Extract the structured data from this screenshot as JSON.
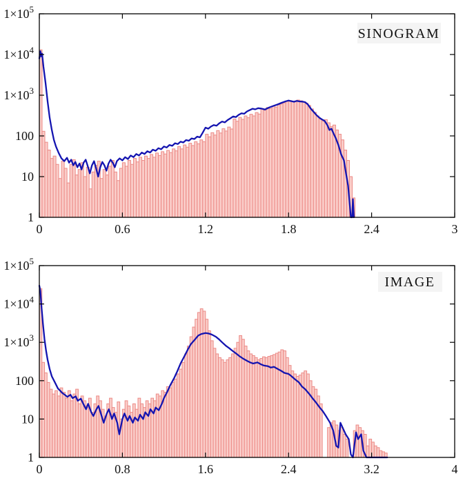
{
  "colors": {
    "bar_fill": "#FACDC9",
    "bar_edge": "#EC8A86",
    "line": "#1414B0",
    "axis": "#000000",
    "label_bg": "#F4F4F4",
    "text": "#111111",
    "background": "#FFFFFF"
  },
  "chart_data": [
    {
      "type": "bar",
      "title": "SINOGRAM",
      "xlabel": "",
      "ylabel": "",
      "xlim": [
        0,
        3
      ],
      "ylim": [
        1,
        100000
      ],
      "y_scale": "log",
      "grid": false,
      "legend_position": "none",
      "x_ticks": [
        0,
        0.6,
        1.2,
        1.8,
        2.4,
        3
      ],
      "x_tick_labels": [
        "0",
        "0.6",
        "1.2",
        "1.8",
        "2.4",
        "3"
      ],
      "y_ticks": [
        {
          "v": 100000,
          "base": "1×10",
          "exp": "5"
        },
        {
          "v": 10000,
          "base": "1×10",
          "exp": "4"
        },
        {
          "v": 1000,
          "base": "1×10",
          "exp": "3"
        },
        {
          "v": 100,
          "base": "100",
          "exp": ""
        },
        {
          "v": 10,
          "base": "10",
          "exp": ""
        },
        {
          "v": 1,
          "base": "1",
          "exp": ""
        }
      ],
      "bin_width": 0.02,
      "bars": [
        13000,
        130,
        70,
        45,
        28,
        32,
        20,
        9,
        24,
        16,
        7,
        20,
        26,
        11,
        15,
        22,
        10,
        17,
        5,
        13,
        19,
        24,
        9,
        15,
        11,
        18,
        25,
        13,
        8,
        16,
        22,
        18,
        25,
        20,
        28,
        23,
        30,
        25,
        32,
        28,
        35,
        30,
        38,
        33,
        41,
        36,
        44,
        39,
        48,
        43,
        55,
        48,
        60,
        53,
        66,
        58,
        72,
        64,
        80,
        72,
        110,
        95,
        120,
        105,
        135,
        118,
        150,
        132,
        165,
        148,
        260,
        230,
        285,
        255,
        310,
        280,
        340,
        310,
        375,
        345,
        470,
        430,
        500,
        470,
        540,
        510,
        580,
        610,
        650,
        700,
        740,
        700,
        720,
        760,
        730,
        690,
        640,
        560,
        460,
        380,
        310,
        260,
        230,
        250,
        210,
        170,
        185,
        140,
        110,
        80,
        45,
        25,
        10,
        3
      ],
      "line_x": [
        0,
        0.008,
        0.013,
        0.02,
        0.03,
        0.045,
        0.06,
        0.075,
        0.09,
        0.105,
        0.12,
        0.14,
        0.16,
        0.18,
        0.2,
        0.215,
        0.23,
        0.245,
        0.26,
        0.275,
        0.29,
        0.305,
        0.32,
        0.335,
        0.35,
        0.365,
        0.38,
        0.395,
        0.41,
        0.425,
        0.44,
        0.455,
        0.47,
        0.485,
        0.5,
        0.515,
        0.53,
        0.545,
        0.56,
        0.58,
        0.6,
        0.62,
        0.64,
        0.66,
        0.68,
        0.7,
        0.72,
        0.74,
        0.76,
        0.78,
        0.8,
        0.82,
        0.84,
        0.86,
        0.88,
        0.9,
        0.92,
        0.94,
        0.96,
        0.98,
        1.0,
        1.02,
        1.04,
        1.06,
        1.08,
        1.1,
        1.12,
        1.14,
        1.16,
        1.18,
        1.2,
        1.22,
        1.24,
        1.26,
        1.28,
        1.3,
        1.32,
        1.34,
        1.36,
        1.38,
        1.4,
        1.42,
        1.44,
        1.46,
        1.48,
        1.5,
        1.52,
        1.54,
        1.56,
        1.58,
        1.6,
        1.63,
        1.66,
        1.69,
        1.72,
        1.75,
        1.78,
        1.8,
        1.82,
        1.84,
        1.86,
        1.88,
        1.9,
        1.92,
        1.94,
        1.96,
        1.98,
        2.0,
        2.02,
        2.04,
        2.06,
        2.08,
        2.095,
        2.11,
        2.125,
        2.14,
        2.16,
        2.18,
        2.2,
        2.215,
        2.23,
        2.24,
        2.25,
        2.26,
        2.265,
        2.272
      ],
      "line_y": [
        8000,
        12000,
        9000,
        10500,
        5000,
        2000,
        700,
        280,
        140,
        80,
        55,
        38,
        28,
        24,
        29,
        22,
        26,
        19,
        23,
        17,
        21,
        15,
        22,
        26,
        18,
        12,
        19,
        24,
        16,
        10,
        17,
        23,
        19,
        14,
        21,
        26,
        22,
        17,
        24,
        28,
        25,
        30,
        27,
        33,
        30,
        36,
        33,
        39,
        36,
        42,
        39,
        46,
        43,
        50,
        47,
        55,
        52,
        60,
        57,
        66,
        63,
        72,
        69,
        79,
        76,
        87,
        84,
        96,
        92,
        120,
        160,
        150,
        170,
        185,
        178,
        205,
        225,
        215,
        245,
        270,
        300,
        290,
        330,
        360,
        350,
        400,
        430,
        465,
        450,
        480,
        470,
        445,
        500,
        545,
        590,
        650,
        710,
        740,
        715,
        690,
        725,
        705,
        695,
        675,
        590,
        470,
        395,
        330,
        285,
        255,
        235,
        185,
        140,
        150,
        115,
        90,
        60,
        35,
        25,
        12,
        6,
        2.5,
        1,
        1,
        2.8,
        1
      ]
    },
    {
      "type": "bar",
      "title": "IMAGE",
      "xlabel": "",
      "ylabel": "",
      "xlim": [
        0,
        4
      ],
      "ylim": [
        1,
        100000
      ],
      "y_scale": "log",
      "grid": false,
      "legend_position": "none",
      "x_ticks": [
        0,
        0.8,
        1.6,
        2.4,
        3.2,
        4
      ],
      "x_tick_labels": [
        "0",
        "0.8",
        "1.6",
        "2.4",
        "3.2",
        "4"
      ],
      "y_ticks": [
        {
          "v": 100000,
          "base": "1×10",
          "exp": "5"
        },
        {
          "v": 10000,
          "base": "1×10",
          "exp": "4"
        },
        {
          "v": 1000,
          "base": "1×10",
          "exp": "3"
        },
        {
          "v": 100,
          "base": "100",
          "exp": ""
        },
        {
          "v": 10,
          "base": "10",
          "exp": ""
        },
        {
          "v": 1,
          "base": "1",
          "exp": ""
        }
      ],
      "bin_width": 0.025,
      "bars": [
        25000,
        300,
        160,
        90,
        60,
        45,
        55,
        40,
        65,
        50,
        35,
        55,
        30,
        45,
        60,
        25,
        40,
        30,
        20,
        35,
        15,
        25,
        40,
        30,
        18,
        12,
        25,
        35,
        20,
        15,
        28,
        10,
        18,
        30,
        22,
        15,
        25,
        18,
        35,
        25,
        20,
        30,
        25,
        35,
        30,
        45,
        40,
        55,
        50,
        70,
        65,
        90,
        110,
        150,
        200,
        300,
        500,
        800,
        1400,
        2500,
        4000,
        6000,
        7500,
        6500,
        4000,
        2000,
        1100,
        700,
        500,
        400,
        350,
        300,
        350,
        400,
        500,
        700,
        1000,
        1500,
        1200,
        800,
        600,
        500,
        450,
        400,
        350,
        380,
        420,
        400,
        430,
        450,
        480,
        520,
        560,
        640,
        600,
        400,
        250,
        180,
        150,
        130,
        140,
        160,
        180,
        150,
        100,
        70,
        60,
        40,
        25,
        1,
        1,
        6,
        8,
        9,
        7,
        5,
        6,
        4,
        3,
        1,
        1,
        5,
        7,
        6,
        5,
        4,
        2,
        3,
        2.5,
        2,
        1.8,
        1.5,
        1.4,
        1.3
      ],
      "line_x": [
        0,
        0.01,
        0.02,
        0.035,
        0.05,
        0.065,
        0.08,
        0.1,
        0.12,
        0.15,
        0.18,
        0.2,
        0.22,
        0.25,
        0.27,
        0.3,
        0.32,
        0.35,
        0.37,
        0.4,
        0.42,
        0.45,
        0.47,
        0.5,
        0.52,
        0.55,
        0.57,
        0.6,
        0.62,
        0.65,
        0.67,
        0.7,
        0.72,
        0.75,
        0.77,
        0.8,
        0.82,
        0.85,
        0.87,
        0.9,
        0.92,
        0.95,
        0.97,
        1.0,
        1.02,
        1.05,
        1.07,
        1.1,
        1.12,
        1.15,
        1.18,
        1.2,
        1.23,
        1.26,
        1.3,
        1.33,
        1.36,
        1.4,
        1.43,
        1.46,
        1.5,
        1.53,
        1.56,
        1.6,
        1.63,
        1.66,
        1.7,
        1.73,
        1.76,
        1.8,
        1.83,
        1.86,
        1.9,
        1.93,
        1.96,
        2.0,
        2.03,
        2.06,
        2.1,
        2.13,
        2.16,
        2.2,
        2.23,
        2.26,
        2.3,
        2.33,
        2.36,
        2.4,
        2.43,
        2.46,
        2.5,
        2.53,
        2.56,
        2.6,
        2.63,
        2.66,
        2.7,
        2.73,
        2.76,
        2.8,
        2.83,
        2.86,
        2.88,
        2.9,
        2.92,
        2.95,
        2.98,
        3.0,
        3.02,
        3.05,
        3.07,
        3.1,
        3.12,
        3.15,
        3.2,
        3.28,
        3.35
      ],
      "line_y": [
        30000,
        22000,
        9000,
        3000,
        1200,
        600,
        350,
        200,
        130,
        90,
        62,
        55,
        48,
        42,
        38,
        43,
        35,
        39,
        30,
        34,
        26,
        18,
        25,
        15,
        12,
        18,
        22,
        12,
        8,
        14,
        18,
        10,
        14,
        8,
        4,
        10,
        14,
        9,
        12,
        8,
        11,
        9,
        13,
        10,
        15,
        12,
        18,
        14,
        20,
        17,
        25,
        35,
        50,
        75,
        120,
        180,
        280,
        450,
        650,
        900,
        1200,
        1500,
        1650,
        1750,
        1700,
        1600,
        1400,
        1200,
        1000,
        800,
        700,
        600,
        500,
        430,
        380,
        330,
        300,
        280,
        300,
        270,
        250,
        240,
        220,
        230,
        200,
        180,
        160,
        150,
        130,
        110,
        90,
        70,
        60,
        45,
        35,
        28,
        20,
        16,
        12,
        8,
        5,
        2,
        1.8,
        8,
        6,
        4,
        3,
        1.2,
        1,
        4.5,
        3,
        4,
        1.5,
        1,
        1,
        1,
        1
      ]
    }
  ]
}
